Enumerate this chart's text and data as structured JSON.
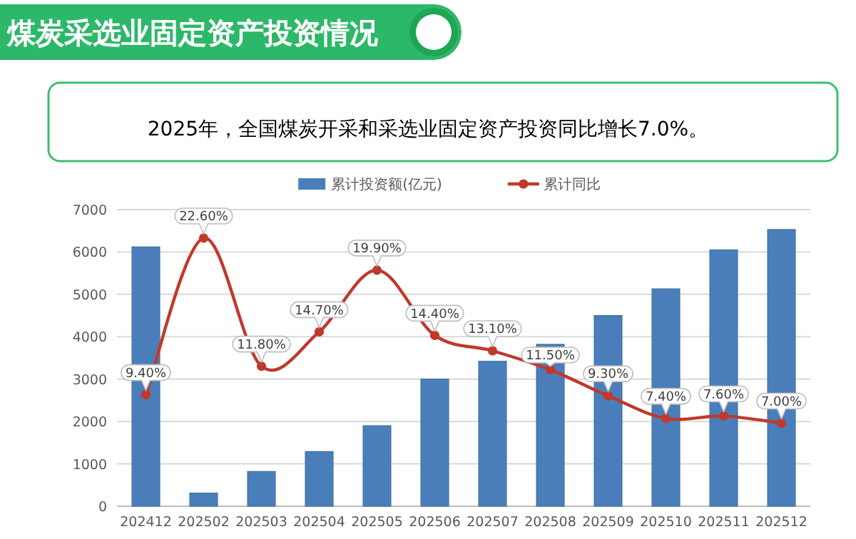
{
  "chart_data": {
    "type": "bar",
    "title": "煤炭采选业固定资产投资情况",
    "subtitle": "2025年，全国煤炭开采和采选业固定资产投资同比增长7.0%。",
    "categories": [
      "202412",
      "202502",
      "202503",
      "202504",
      "202505",
      "202506",
      "202507",
      "202508",
      "202509",
      "202510",
      "202511",
      "202512"
    ],
    "series": [
      {
        "name": "累计投资额(亿元)",
        "color": "#4a7ebb",
        "values": [
          6120,
          310,
          820,
          1290,
          1900,
          3000,
          3420,
          3820,
          4500,
          5130,
          6050,
          6530
        ]
      },
      {
        "name": "累计同比",
        "type": "line",
        "axis": "y2",
        "color": "#c0392b",
        "values": [
          9.4,
          22.6,
          11.8,
          14.7,
          19.9,
          14.4,
          13.1,
          11.5,
          9.3,
          7.4,
          7.6,
          7.0
        ],
        "value_labels": [
          "9.40%",
          "22.60%",
          "11.80%",
          "14.70%",
          "19.90%",
          "14.40%",
          "13.10%",
          "11.50%",
          "9.30%",
          "7.40%",
          "7.60%",
          "7.00%"
        ]
      }
    ],
    "ylim": [
      0,
      7000
    ],
    "yticks": [
      0,
      1000,
      2000,
      3000,
      4000,
      5000,
      6000,
      7000
    ],
    "y2lim": [
      0,
      25
    ],
    "grid": "y",
    "legend": "top",
    "marker": "circle"
  }
}
